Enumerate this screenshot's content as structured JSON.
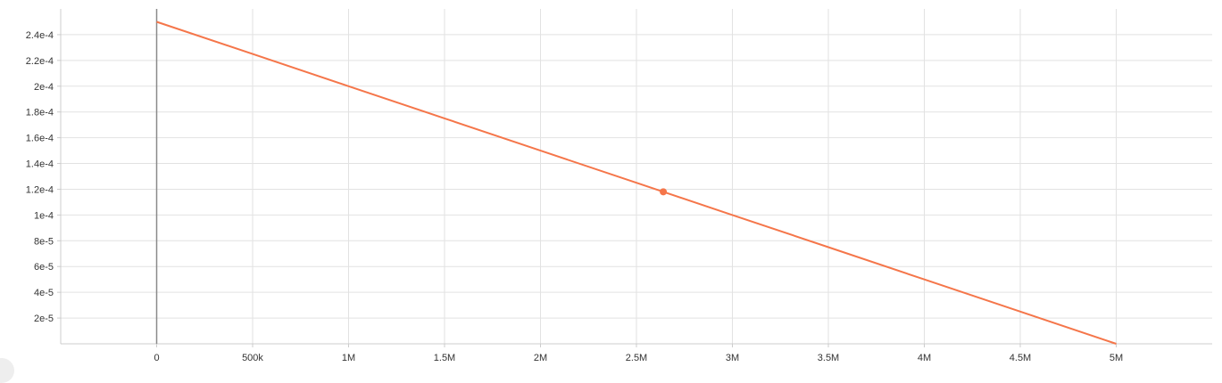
{
  "chart_data": {
    "type": "line",
    "title": "",
    "xlabel": "",
    "ylabel": "",
    "xlim": [
      -500000,
      5500000
    ],
    "ylim": [
      0,
      0.00026
    ],
    "grid": true,
    "legend": "none",
    "x_ticks": [
      {
        "value": 0,
        "label": "0"
      },
      {
        "value": 500000,
        "label": "500k"
      },
      {
        "value": 1000000,
        "label": "1M"
      },
      {
        "value": 1500000,
        "label": "1.5M"
      },
      {
        "value": 2000000,
        "label": "2M"
      },
      {
        "value": 2500000,
        "label": "2.5M"
      },
      {
        "value": 3000000,
        "label": "3M"
      },
      {
        "value": 3500000,
        "label": "3.5M"
      },
      {
        "value": 4000000,
        "label": "4M"
      },
      {
        "value": 4500000,
        "label": "4.5M"
      },
      {
        "value": 5000000,
        "label": "5M"
      }
    ],
    "y_ticks": [
      {
        "value": 2e-05,
        "label": "2e-5"
      },
      {
        "value": 4e-05,
        "label": "4e-5"
      },
      {
        "value": 6e-05,
        "label": "6e-5"
      },
      {
        "value": 8e-05,
        "label": "8e-5"
      },
      {
        "value": 0.0001,
        "label": "1e-4"
      },
      {
        "value": 0.00012,
        "label": "1.2e-4"
      },
      {
        "value": 0.00014,
        "label": "1.4e-4"
      },
      {
        "value": 0.00016,
        "label": "1.6e-4"
      },
      {
        "value": 0.00018,
        "label": "1.8e-4"
      },
      {
        "value": 0.0002,
        "label": "2e-4"
      },
      {
        "value": 0.00022,
        "label": "2.2e-4"
      },
      {
        "value": 0.00024,
        "label": "2.4e-4"
      }
    ],
    "series": [
      {
        "color": "#f5764a",
        "x": [
          0,
          500000,
          1000000,
          1500000,
          2000000,
          2500000,
          3000000,
          3500000,
          4000000,
          4500000,
          5000000
        ],
        "y": [
          0.00025,
          0.000225,
          0.0002,
          0.000175,
          0.00015,
          0.000125,
          0.0001,
          7.5e-05,
          5e-05,
          2.5e-05,
          0
        ]
      }
    ],
    "highlight_point": {
      "x": 2640000,
      "y": 0.000118
    }
  }
}
